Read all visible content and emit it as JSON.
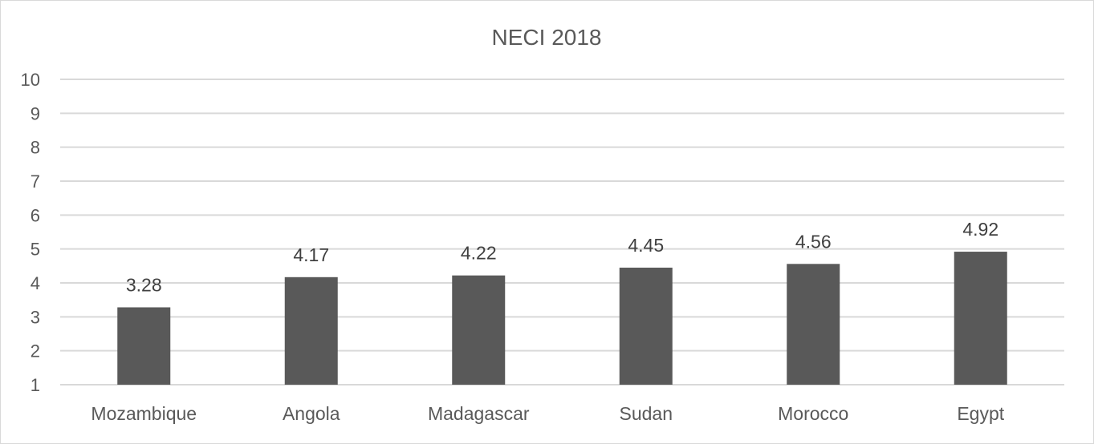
{
  "chart_data": {
    "type": "bar",
    "title": "NECI 2018",
    "categories": [
      "Mozambique",
      "Angola",
      "Madagascar",
      "Sudan",
      "Morocco",
      "Egypt"
    ],
    "values": [
      3.28,
      4.17,
      4.22,
      4.45,
      4.56,
      4.92
    ],
    "data_labels": [
      "3.28",
      "4.17",
      "4.22",
      "4.45",
      "4.56",
      "4.92"
    ],
    "ylim": [
      1,
      10
    ],
    "yticks": [
      "1",
      "2",
      "3",
      "4",
      "5",
      "6",
      "7",
      "8",
      "9",
      "10"
    ],
    "xlabel": "",
    "ylabel": "",
    "grid": true,
    "legend": "none",
    "bar_color": "#595959",
    "grid_color": "#d9d9d9"
  }
}
